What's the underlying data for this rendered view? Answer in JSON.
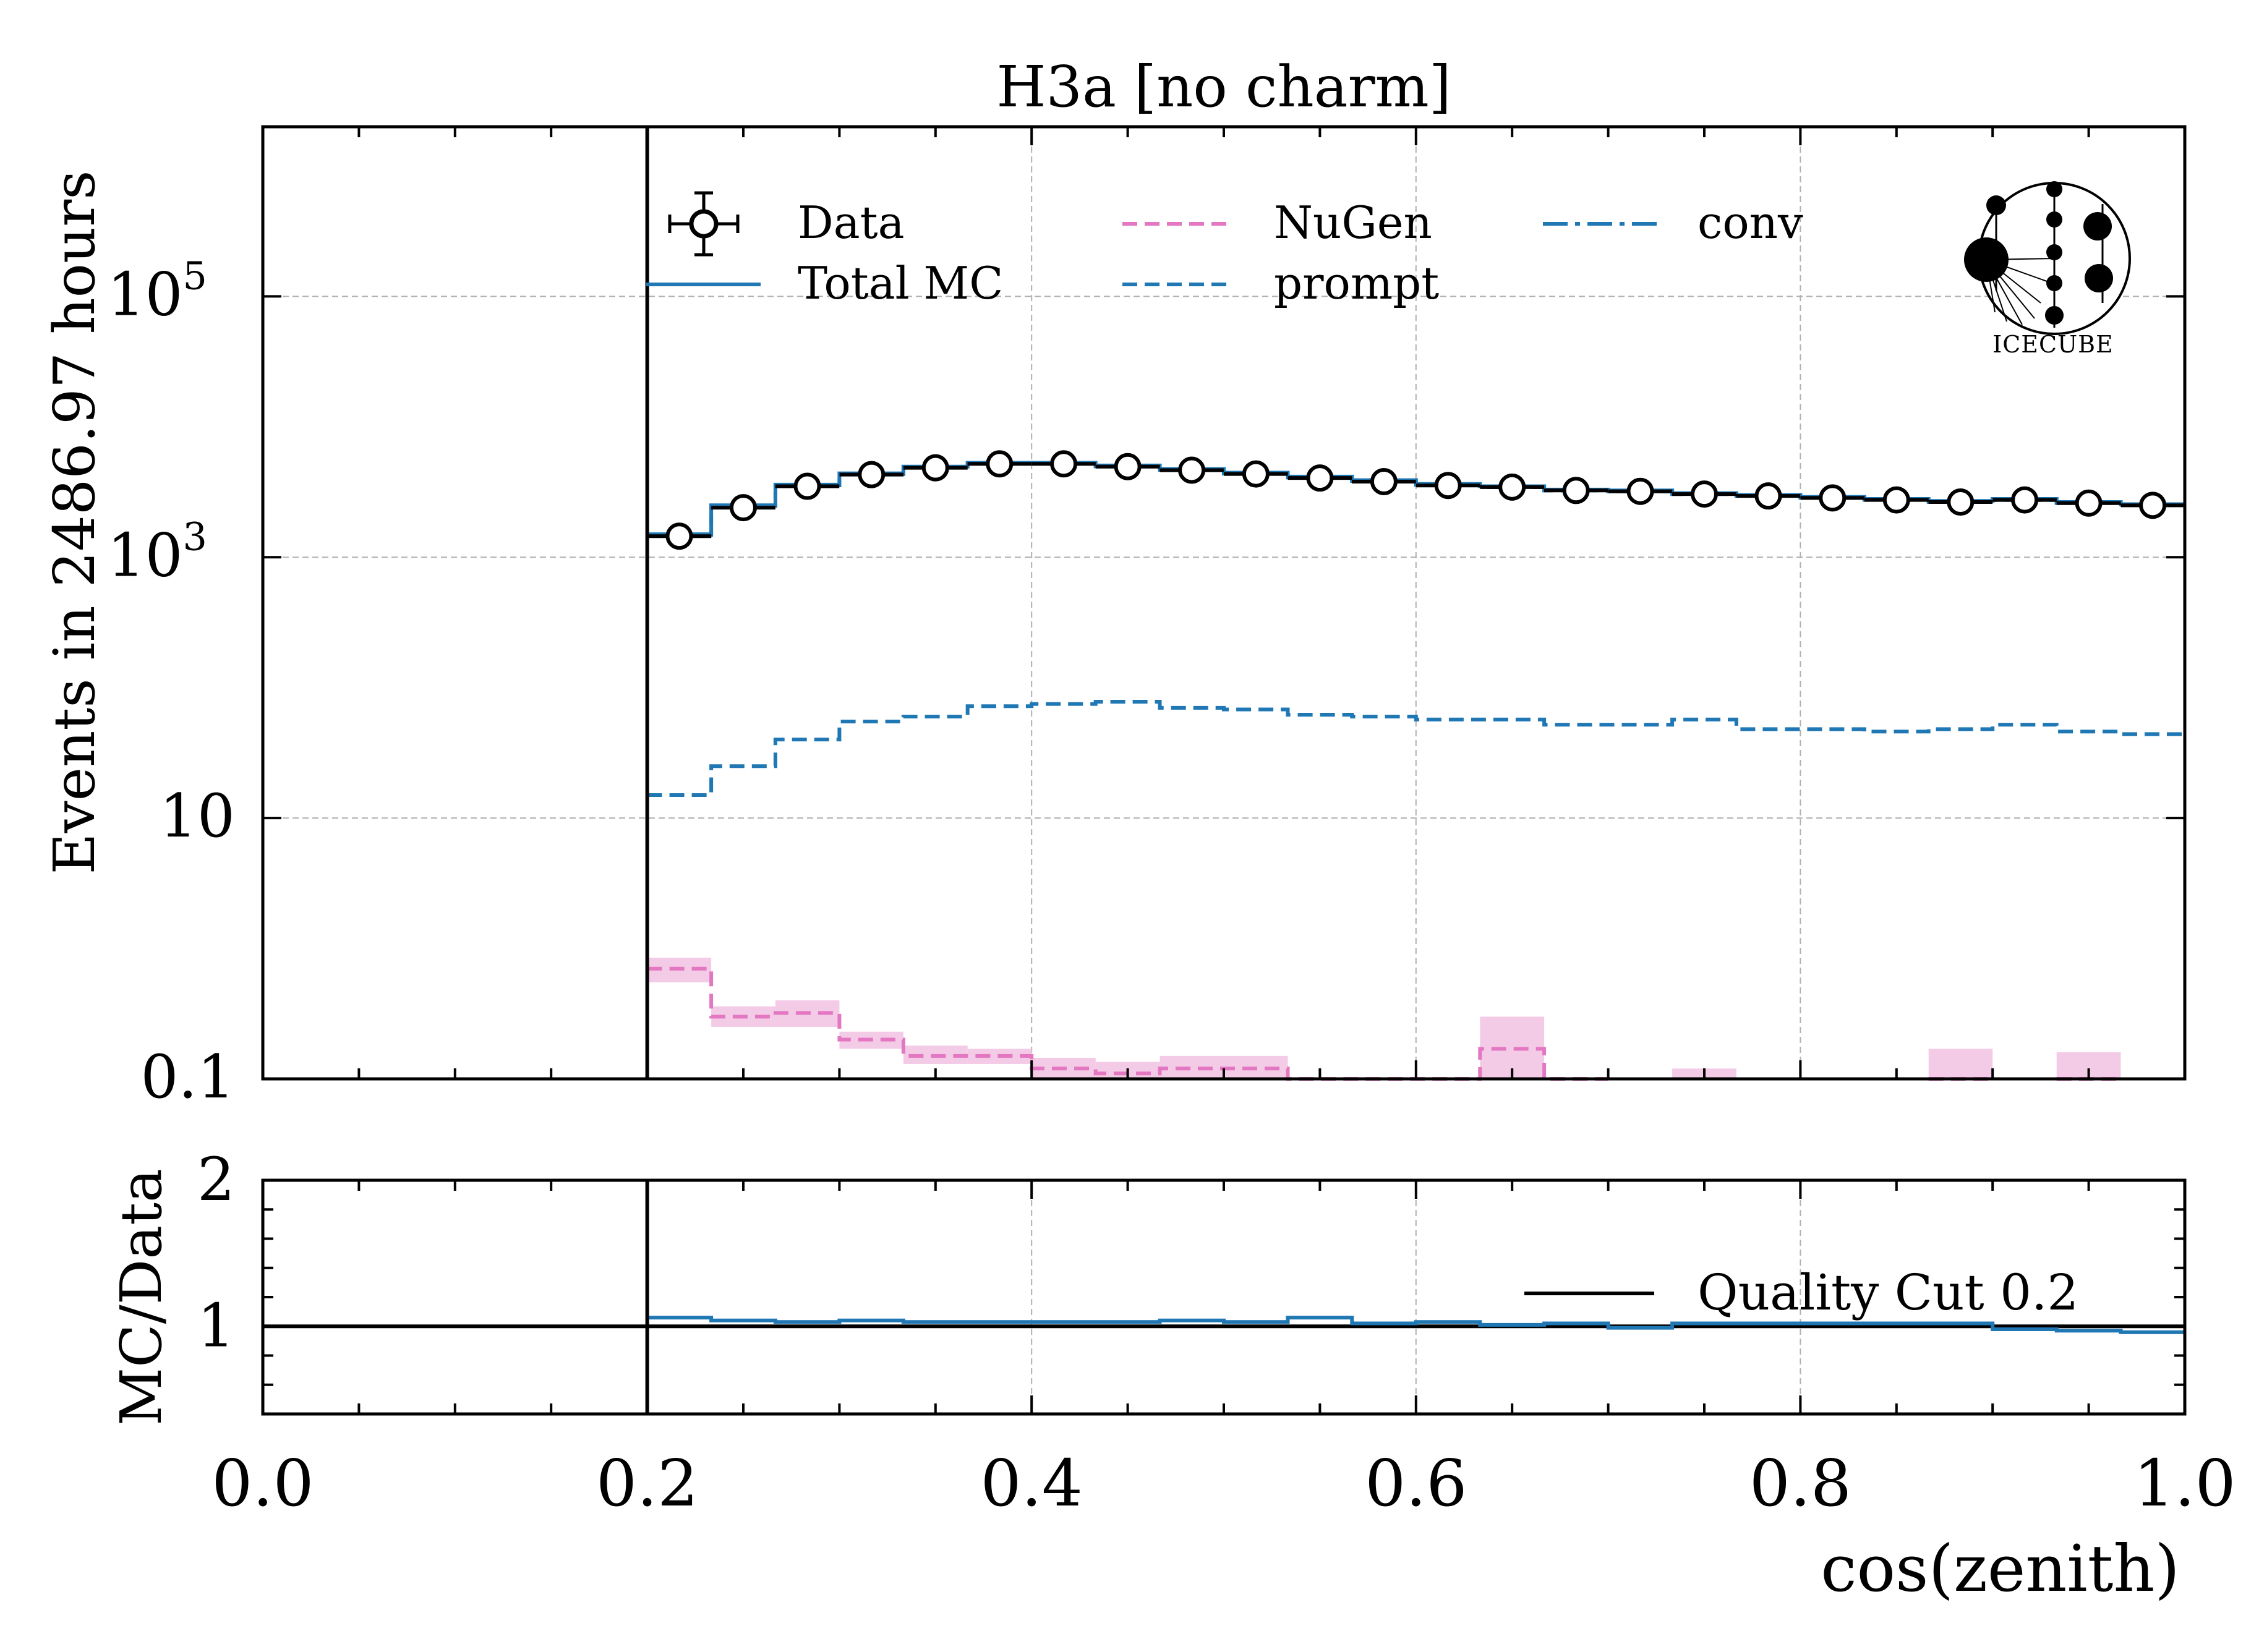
{
  "chart_data": [
    {
      "type": "line",
      "title": "H3a [no charm]",
      "ylabel": "Events in 2486.97 hours",
      "xlabel": "",
      "xlim": [
        0.0,
        1.0
      ],
      "ylim": [
        0.1,
        2000000
      ],
      "yscale": "log",
      "grid": true,
      "legend_position": "top",
      "yticks": [
        {
          "value": 0.1,
          "label": "0.1"
        },
        {
          "value": 10,
          "label": "10"
        },
        {
          "value": 1000,
          "label": "10",
          "sup": "3"
        },
        {
          "value": 100000,
          "label": "10",
          "sup": "5"
        }
      ],
      "xticks": [
        0.0,
        0.2,
        0.4,
        0.6,
        0.8,
        1.0
      ],
      "vline": 0.2,
      "bin_edges": [
        0.2,
        0.2333,
        0.2667,
        0.3,
        0.3333,
        0.3667,
        0.4,
        0.4333,
        0.4667,
        0.5,
        0.5333,
        0.5667,
        0.6,
        0.6333,
        0.6667,
        0.7,
        0.7333,
        0.7667,
        0.8,
        0.8333,
        0.8667,
        0.9,
        0.9333,
        0.9667,
        1.0
      ],
      "series": [
        {
          "name": "Data",
          "kind": "points",
          "color": "#000000",
          "x": [
            0.2167,
            0.25,
            0.2833,
            0.3167,
            0.35,
            0.3833,
            0.4167,
            0.45,
            0.4833,
            0.5167,
            0.55,
            0.5833,
            0.6167,
            0.65,
            0.6833,
            0.7167,
            0.75,
            0.7833,
            0.8167,
            0.85,
            0.8833,
            0.9167,
            0.95,
            0.9833
          ],
          "y": [
            1450,
            2400,
            3500,
            4300,
            4850,
            5200,
            5200,
            4950,
            4650,
            4350,
            4050,
            3800,
            3550,
            3450,
            3250,
            3200,
            3050,
            2950,
            2850,
            2750,
            2650,
            2750,
            2600,
            2500
          ]
        },
        {
          "name": "Total MC",
          "kind": "step",
          "color": "#1f77b4",
          "y": [
            1500,
            2500,
            3600,
            4400,
            4950,
            5300,
            5300,
            5050,
            4750,
            4450,
            4150,
            3900,
            3650,
            3500,
            3300,
            3250,
            3100,
            3000,
            2900,
            2800,
            2700,
            2800,
            2650,
            2550
          ]
        },
        {
          "name": "prompt",
          "kind": "step",
          "color": "#1f77b4",
          "y": [
            15,
            25,
            40,
            55,
            60,
            72,
            75,
            78,
            70,
            68,
            62,
            60,
            57,
            57,
            52,
            52,
            57,
            48,
            48,
            46,
            48,
            52,
            46,
            44
          ]
        },
        {
          "name": "conv",
          "kind": "step",
          "color": "#1f77b4",
          "y": [
            1485,
            2475,
            3560,
            4345,
            4890,
            5228,
            5225,
            4972,
            4680,
            4382,
            4088,
            3840,
            3593,
            3443,
            3248,
            3198,
            3043,
            2952,
            2852,
            2754,
            2652,
            2748,
            2604,
            2506
          ]
        },
        {
          "name": "NuGen",
          "kind": "step",
          "color": "#e377c2",
          "y": [
            0.7,
            0.3,
            0.32,
            0.2,
            0.15,
            0.15,
            0.12,
            0.11,
            0.12,
            0.12,
            0.07,
            0.05,
            0.07,
            0.17,
            0.0307,
            null,
            null,
            null,
            null,
            null,
            0.074,
            null,
            0.062,
            null
          ],
          "band_lo": [
            0.55,
            0.25,
            0.25,
            0.17,
            0.13,
            0.13,
            0.1,
            0.09,
            0.1,
            0.1,
            0.06,
            0.04,
            0.045,
            0.1,
            0.012,
            null,
            0.075,
            null,
            null,
            null,
            0.032,
            null,
            0.024,
            null
          ],
          "band_hi": [
            0.85,
            0.36,
            0.4,
            0.23,
            0.18,
            0.17,
            0.145,
            0.135,
            0.15,
            0.15,
            0.08,
            0.06,
            0.1,
            0.3,
            0.05,
            null,
            0.12,
            null,
            null,
            null,
            0.17,
            null,
            0.16,
            null
          ]
        }
      ]
    },
    {
      "type": "line",
      "title": "",
      "ylabel": "MC/Data",
      "xlabel": "cos(zenith)",
      "xlim": [
        0.0,
        1.0
      ],
      "ylim": [
        0.4,
        2.0
      ],
      "yticks": [
        {
          "value": 1,
          "label": "1"
        },
        {
          "value": 2,
          "label": "2"
        }
      ],
      "xticks": [
        0.0,
        0.2,
        0.4,
        0.6,
        0.8,
        1.0
      ],
      "xticklabels": [
        "0.0",
        "0.2",
        "0.4",
        "0.6",
        "0.8",
        "1.0"
      ],
      "grid": true,
      "legend_position": "right",
      "vline": 0.2,
      "series": [
        {
          "name": "Quality Cut 0.2",
          "kind": "hline",
          "color": "#000000",
          "y": 1.0
        },
        {
          "name": "",
          "kind": "step",
          "color": "#1f77b4",
          "y": [
            1.06,
            1.04,
            1.03,
            1.04,
            1.03,
            1.03,
            1.03,
            1.03,
            1.04,
            1.03,
            1.06,
            1.02,
            1.03,
            1.01,
            1.02,
            0.99,
            1.02,
            1.02,
            1.02,
            1.02,
            1.02,
            0.98,
            0.97,
            0.96
          ]
        }
      ]
    }
  ],
  "legend": {
    "data": "Data",
    "total_mc": "Total MC",
    "nugen": "NuGen",
    "prompt": "prompt",
    "conv": "conv"
  },
  "logo": {
    "text": "ICECUBE",
    "icon": "icecube-logo-icon"
  },
  "colors": {
    "blue": "#1f77b4",
    "pink": "#e377c2",
    "pink_band": "#f4cbe6",
    "grid": "#b0b0b0"
  }
}
